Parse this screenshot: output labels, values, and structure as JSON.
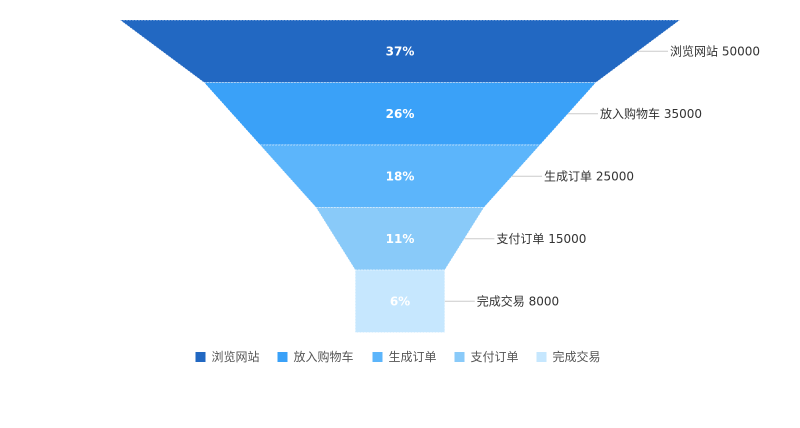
{
  "chart_data": {
    "type": "funnel",
    "stages": [
      {
        "name": "浏览网站",
        "value": 50000,
        "percent": "37%",
        "color": "#2268c2"
      },
      {
        "name": "放入购物车",
        "value": 35000,
        "percent": "26%",
        "color": "#3aa1f8"
      },
      {
        "name": "生成订单",
        "value": 25000,
        "percent": "18%",
        "color": "#5cb5fb"
      },
      {
        "name": "支付订单",
        "value": 15000,
        "percent": "11%",
        "color": "#89caf9"
      },
      {
        "name": "完成交易",
        "value": 8000,
        "percent": "6%",
        "color": "#c6e7fe"
      }
    ],
    "legend": {
      "position": "bottom"
    },
    "leader_line_color": "#cccccc"
  }
}
